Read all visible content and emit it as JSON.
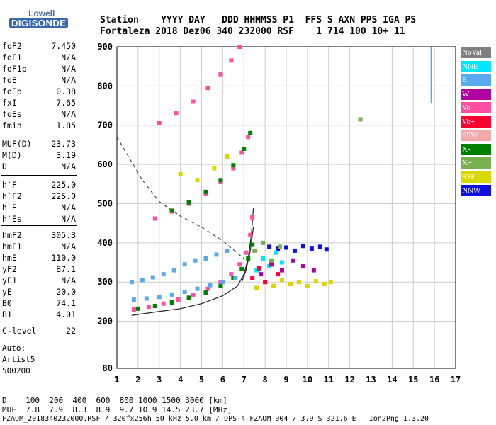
{
  "logo": {
    "line1": "Lowell",
    "line2": "DIGISONDE"
  },
  "header": {
    "row1": "Station    YYYY DAY   DDD HHMMSS P1  FFS S AXN PPS IGA PS",
    "row2": "Fortaleza 2018 Dez06 340 232000 RSF    1 714 100 10+ 11"
  },
  "params": [
    {
      "name": "foF2",
      "value": "7.450"
    },
    {
      "name": "foF1",
      "value": "N/A"
    },
    {
      "name": "foF1p",
      "value": "N/A"
    },
    {
      "name": "foE",
      "value": "N/A"
    },
    {
      "name": "foEp",
      "value": "0.38"
    },
    {
      "name": "fxI",
      "value": "7.65"
    },
    {
      "name": "foEs",
      "value": "N/A"
    },
    {
      "name": "fmin",
      "value": "1.85"
    },
    {
      "name": "MUF(D)",
      "value": "23.73"
    },
    {
      "name": "M(D)",
      "value": "3.19"
    },
    {
      "name": "D",
      "value": "N/A"
    },
    {
      "name": "h`F",
      "value": "225.0"
    },
    {
      "name": "h`F2",
      "value": "225.0"
    },
    {
      "name": "h`E",
      "value": "N/A"
    },
    {
      "name": "h`Es",
      "value": "N/A"
    },
    {
      "name": "hmF2",
      "value": "305.3"
    },
    {
      "name": "hmF1",
      "value": "N/A"
    },
    {
      "name": "hmE",
      "value": "110.0"
    },
    {
      "name": "yF2",
      "value": "87.1"
    },
    {
      "name": "yF1",
      "value": "N/A"
    },
    {
      "name": "yE",
      "value": "20.0"
    },
    {
      "name": "B0",
      "value": "74.1"
    },
    {
      "name": "B1",
      "value": "4.01"
    },
    {
      "name": "C-level",
      "value": "22"
    }
  ],
  "auto": {
    "line1": "Auto:",
    "line2": "Artist5",
    "line3": "500200"
  },
  "legend": [
    {
      "label": "NoVal",
      "color": "#808080"
    },
    {
      "label": "NNE",
      "color": "#00e6ff"
    },
    {
      "label": "E",
      "color": "#5aa8f0"
    },
    {
      "label": "W",
      "color": "#b000a0"
    },
    {
      "label": "Vo-",
      "color": "#ff50a0"
    },
    {
      "label": "Vo+",
      "color": "#ff0033"
    },
    {
      "label": "SSW",
      "color": "#f5a8a8"
    },
    {
      "label": "X-",
      "color": "#008000"
    },
    {
      "label": "X+",
      "color": "#78b050"
    },
    {
      "label": "SSE",
      "color": "#d8d800"
    },
    {
      "label": "NNW",
      "color": "#1010e0"
    }
  ],
  "footer": {
    "d_row": "D    100  200  400  600  800 1000 1500 3000 [km]",
    "muf_row": "MUF  7.8  7.9  8.3  8.9  9.7 10.9 14.5 23.7 [MHz]",
    "file_row": "FZAOM_2018340232000.RSF / 320fx256h 50 kHz 5.0 km / DPS-4 FZAOM 904 / 3.9 S 321.6 E   Ion2Png 1.3.20"
  },
  "chart_data": {
    "type": "scatter",
    "xlim": [
      1,
      17
    ],
    "ylim": [
      80,
      900
    ],
    "xticks": [
      1,
      2,
      3,
      4,
      5,
      6,
      7,
      8,
      9,
      10,
      11,
      12,
      13,
      14,
      15,
      16,
      17
    ],
    "yticks": [
      80,
      200,
      300,
      400,
      500,
      600,
      700,
      800,
      900
    ],
    "grid": true,
    "legend_position": "right",
    "series": [
      {
        "name": "Vo-",
        "color": "#ff50a0",
        "x": [
          1.8,
          2.5,
          3.2,
          3.9,
          4.6,
          5.3,
          5.9,
          6.4,
          6.8,
          7.1,
          7.3,
          7.4
        ],
        "y": [
          230,
          237,
          245,
          255,
          268,
          283,
          300,
          320,
          345,
          375,
          420,
          465
        ]
      },
      {
        "name": "X-",
        "color": "#008000",
        "x": [
          2.0,
          2.8,
          3.6,
          4.4,
          5.2,
          5.9,
          6.5,
          6.9,
          7.2,
          7.4
        ],
        "y": [
          232,
          239,
          248,
          260,
          273,
          290,
          310,
          333,
          360,
          395
        ]
      },
      {
        "name": "Vo-",
        "color": "#ff50a0",
        "x": [
          2.8,
          3.6,
          4.4,
          5.2,
          5.9,
          6.5,
          6.9,
          7.2
        ],
        "y": [
          462,
          480,
          500,
          525,
          555,
          590,
          630,
          670
        ]
      },
      {
        "name": "X-",
        "color": "#008000",
        "x": [
          3.6,
          4.4,
          5.2,
          5.9,
          6.5,
          7.0,
          7.3
        ],
        "y": [
          482,
          503,
          530,
          560,
          598,
          640,
          680
        ]
      },
      {
        "name": "Vo-",
        "color": "#ff50a0",
        "x": [
          3.0,
          3.8,
          4.6,
          5.3,
          5.9,
          6.4,
          6.8
        ],
        "y": [
          705,
          730,
          760,
          795,
          830,
          865,
          900
        ]
      },
      {
        "name": "E",
        "color": "#5aa8f0",
        "x": [
          1.7,
          2.2,
          2.7,
          3.2,
          3.7,
          4.2,
          4.7,
          5.2,
          5.7,
          6.2,
          1.8,
          2.4,
          3.0,
          3.6,
          4.2,
          4.8,
          5.4,
          6.0,
          6.6
        ],
        "y": [
          300,
          305,
          312,
          320,
          330,
          345,
          355,
          360,
          370,
          380,
          255,
          258,
          262,
          268,
          275,
          283,
          292,
          300,
          310
        ]
      },
      {
        "name": "NNW",
        "color": "#1010e0",
        "x": [
          8.2,
          8.6,
          9.0,
          9.4,
          9.8,
          10.2,
          10.6,
          10.9
        ],
        "y": [
          390,
          385,
          388,
          380,
          392,
          385,
          390,
          383
        ]
      },
      {
        "name": "SSE",
        "color": "#d8d800",
        "x": [
          7.6,
          8.0,
          8.4,
          8.8,
          9.2,
          9.6,
          10.0,
          10.4,
          10.8,
          11.1,
          4.0,
          4.8,
          5.6,
          6.2
        ],
        "y": [
          285,
          300,
          290,
          305,
          295,
          300,
          290,
          302,
          295,
          300,
          575,
          560,
          590,
          620
        ]
      },
      {
        "name": "NNE",
        "color": "#00e6ff",
        "x": [
          7.6,
          7.9,
          8.2,
          8.5,
          8.8
        ],
        "y": [
          330,
          360,
          340,
          375,
          350
        ]
      },
      {
        "name": "Vo+",
        "color": "#ff0033",
        "x": [
          7.4,
          7.7,
          8.0,
          8.3,
          8.6
        ],
        "y": [
          310,
          335,
          300,
          345,
          320
        ]
      },
      {
        "name": "W",
        "color": "#b000a0",
        "x": [
          7.8,
          8.3,
          8.8,
          9.3,
          9.8,
          10.3
        ],
        "y": [
          320,
          345,
          330,
          355,
          340,
          330
        ]
      },
      {
        "name": "X+",
        "color": "#78b050",
        "x": [
          7.5,
          7.9,
          8.3,
          8.7,
          12.5
        ],
        "y": [
          380,
          400,
          355,
          390,
          715
        ]
      }
    ],
    "lines": [
      {
        "name": "profile",
        "x": [
          1.7,
          3.0,
          4.0,
          5.0,
          6.0,
          6.7,
          7.0,
          7.2,
          7.35,
          7.45
        ],
        "y": [
          215,
          225,
          232,
          245,
          265,
          290,
          320,
          360,
          420,
          490
        ]
      },
      {
        "name": "profile-upper",
        "x": [
          6.9,
          7.1,
          7.3,
          7.45
        ],
        "y": [
          300,
          330,
          380,
          440
        ]
      },
      {
        "name": "MUF",
        "dashed": true,
        "x": [
          1.0,
          1.6,
          2.2,
          3.0,
          4.0,
          5.0,
          6.0,
          7.0
        ],
        "y": [
          670,
          615,
          560,
          505,
          468,
          440,
          405,
          360
        ]
      }
    ],
    "bars": [
      {
        "x": 15.85,
        "y1": 755,
        "y2": 900,
        "color": "#5aa8f0"
      }
    ]
  }
}
